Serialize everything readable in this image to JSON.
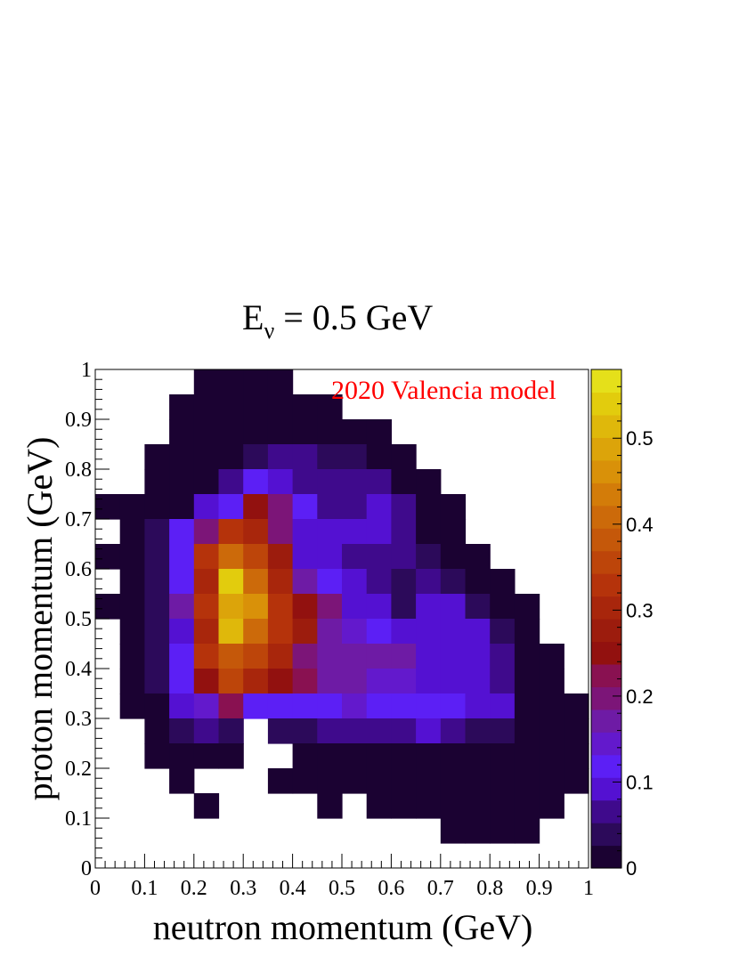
{
  "chart_data": {
    "type": "heatmap",
    "title_main": "E",
    "title_sub": "ν",
    "title_rest": " = 0.5 GeV",
    "xlabel": "neutron momentum (GeV)",
    "ylabel": "proton momentum (GeV)",
    "annotation": "2020 Valencia model",
    "xlim": [
      0,
      1
    ],
    "ylim": [
      0,
      1
    ],
    "zlim": [
      0,
      0.58
    ],
    "bin_width": 0.05,
    "x_ticks": [
      "0",
      "0.1",
      "0.2",
      "0.3",
      "0.4",
      "0.5",
      "0.6",
      "0.7",
      "0.8",
      "0.9",
      "1"
    ],
    "y_ticks": [
      "0",
      "0.1",
      "0.2",
      "0.3",
      "0.4",
      "0.5",
      "0.6",
      "0.7",
      "0.8",
      "0.9",
      "1"
    ],
    "z_ticks": [
      "0",
      "0.1",
      "0.2",
      "0.3",
      "0.4",
      "0.5"
    ],
    "colormap": [
      "#1b0232",
      "#2c0a5a",
      "#3f0a8c",
      "#5411d2",
      "#5c1ff5",
      "#6319cc",
      "#6e1ba5",
      "#7c1578",
      "#891151",
      "#92110f",
      "#9c1c0d",
      "#a8260c",
      "#b5330b",
      "#bd450a",
      "#c5580a",
      "#cc6a0a",
      "#d37c09",
      "#d99109",
      "#dca40a",
      "#dfb80b",
      "#e2cc0d",
      "#e5e01a"
    ],
    "bins_y_rows_top_to_bottom_note": "rows listed from y=0.95-1.0 down to y=0.0-0.05; columns x=0.00-0.05 ... 0.95-1.00; null = empty",
    "values": [
      [
        null,
        null,
        null,
        null,
        0.001,
        0.001,
        0.001,
        0.001,
        null,
        null,
        null,
        null,
        null,
        null,
        null,
        null,
        null,
        null,
        null,
        null
      ],
      [
        null,
        null,
        null,
        0.001,
        0.001,
        0.001,
        0.001,
        0.001,
        0.001,
        0.001,
        null,
        null,
        null,
        null,
        null,
        null,
        null,
        null,
        null,
        null
      ],
      [
        null,
        null,
        null,
        0.001,
        0.001,
        0.001,
        0.001,
        0.02,
        0.001,
        0.001,
        0.001,
        0.001,
        null,
        null,
        null,
        null,
        null,
        null,
        null,
        null
      ],
      [
        null,
        null,
        0.001,
        0.001,
        0.001,
        0.001,
        0.03,
        0.07,
        0.07,
        0.05,
        0.05,
        0.001,
        0.001,
        null,
        null,
        null,
        null,
        null,
        null,
        null
      ],
      [
        null,
        null,
        0.001,
        0.001,
        0.001,
        0.07,
        0.12,
        0.08,
        0.07,
        0.07,
        0.07,
        0.07,
        0.001,
        0.001,
        null,
        null,
        null,
        null,
        null,
        null
      ],
      [
        0.001,
        0.001,
        0.001,
        0.001,
        0.08,
        0.13,
        0.26,
        0.2,
        0.12,
        0.07,
        0.07,
        0.08,
        0.06,
        0.001,
        0.001,
        null,
        null,
        null,
        null,
        null
      ],
      [
        null,
        0.001,
        0.03,
        0.12,
        0.2,
        0.33,
        0.3,
        0.2,
        0.1,
        0.08,
        0.08,
        0.08,
        0.06,
        0.001,
        0.001,
        null,
        null,
        null,
        null,
        null
      ],
      [
        0.001,
        0.001,
        0.03,
        0.12,
        0.32,
        0.41,
        0.36,
        0.27,
        0.1,
        0.09,
        0.06,
        0.07,
        0.07,
        0.05,
        0.001,
        0.001,
        null,
        null,
        null,
        null
      ],
      [
        null,
        0.001,
        0.03,
        0.12,
        0.31,
        0.53,
        0.4,
        0.3,
        0.17,
        0.12,
        0.09,
        0.07,
        0.05,
        0.06,
        0.03,
        0.001,
        0.001,
        null,
        null,
        null
      ],
      [
        0.001,
        0.001,
        0.03,
        0.17,
        0.32,
        0.5,
        0.45,
        0.33,
        0.25,
        0.2,
        0.1,
        0.08,
        0.05,
        0.08,
        0.08,
        0.05,
        0.001,
        0.001,
        null,
        null
      ],
      [
        null,
        0.001,
        0.03,
        0.1,
        0.31,
        0.52,
        0.41,
        0.34,
        0.27,
        0.18,
        0.15,
        0.11,
        0.08,
        0.08,
        0.08,
        0.08,
        0.04,
        0.001,
        null,
        null
      ],
      [
        null,
        0.001,
        0.03,
        0.12,
        0.32,
        0.38,
        0.36,
        0.3,
        0.21,
        0.16,
        0.16,
        0.16,
        0.16,
        0.1,
        0.1,
        0.09,
        0.07,
        0.001,
        0.001,
        null
      ],
      [
        null,
        0.001,
        0.03,
        0.12,
        0.26,
        0.36,
        0.29,
        0.24,
        0.23,
        0.16,
        0.16,
        0.14,
        0.14,
        0.1,
        0.1,
        0.08,
        0.07,
        0.001,
        0.001,
        null
      ],
      [
        null,
        0.001,
        0.02,
        0.08,
        0.14,
        0.22,
        0.11,
        0.11,
        0.11,
        0.11,
        0.15,
        0.11,
        0.11,
        0.11,
        0.11,
        0.08,
        0.08,
        0.001,
        0.001,
        0.001
      ],
      [
        null,
        null,
        0.001,
        0.05,
        0.07,
        0.03,
        null,
        0.03,
        0.05,
        0.06,
        0.06,
        0.06,
        0.06,
        0.09,
        0.06,
        0.05,
        0.03,
        0.001,
        0.001,
        0.001
      ],
      [
        null,
        null,
        0.001,
        0.001,
        0.001,
        0.001,
        null,
        null,
        0.001,
        0.001,
        0.02,
        0.02,
        0.02,
        0.02,
        0.02,
        0.02,
        0.001,
        0.001,
        0.001,
        0.001
      ],
      [
        null,
        null,
        null,
        0.001,
        null,
        null,
        null,
        0.001,
        0.001,
        0.001,
        0.001,
        0.001,
        0.001,
        0.001,
        0.001,
        0.001,
        0.001,
        0.001,
        0.001,
        0.001
      ],
      [
        null,
        null,
        null,
        null,
        0.001,
        null,
        null,
        null,
        null,
        0.001,
        null,
        0.001,
        0.001,
        0.001,
        0.001,
        0.001,
        0.001,
        0.001,
        0.001,
        null
      ],
      [
        null,
        null,
        null,
        null,
        null,
        null,
        null,
        null,
        null,
        null,
        null,
        null,
        null,
        null,
        0.001,
        0.001,
        0.001,
        0.001,
        null,
        null
      ],
      [
        null,
        null,
        null,
        null,
        null,
        null,
        null,
        null,
        null,
        null,
        null,
        null,
        null,
        null,
        null,
        null,
        null,
        null,
        null,
        null
      ]
    ]
  }
}
